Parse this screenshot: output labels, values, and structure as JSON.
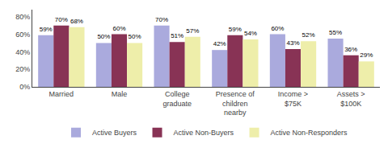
{
  "chart_data": {
    "type": "bar",
    "categories": [
      "Married",
      "Male",
      "College\ngraduate",
      "Presence of\nchildren\nnearby",
      "Income >\n$75K",
      "Assets >\n$100K"
    ],
    "series": [
      {
        "name": "Active Buyers",
        "color": "#aaaadd",
        "values": [
          59,
          50,
          70,
          42,
          60,
          55
        ],
        "value_labels": [
          "59%",
          "50%",
          "70%",
          "42%",
          "60%",
          "55%"
        ]
      },
      {
        "name": "Active Non-Buyers",
        "color": "#883355",
        "values": [
          70,
          60,
          51,
          59,
          43,
          36
        ],
        "value_labels": [
          "70%",
          "60%",
          "51%",
          "59%",
          "43%",
          "36%"
        ]
      },
      {
        "name": "Active Non-Responders",
        "color": "#eeeeaa",
        "values": [
          68,
          50,
          57,
          54,
          52,
          29
        ],
        "value_labels": [
          "68%",
          "50%",
          "57%",
          "54%",
          "52%",
          "29%"
        ]
      }
    ],
    "ylim": [
      0,
      88
    ],
    "yticks": [
      {
        "value": 0,
        "label": "0%"
      },
      {
        "value": 20,
        "label": "20%"
      },
      {
        "value": 40,
        "label": "40%"
      },
      {
        "value": 60,
        "label": "60%"
      },
      {
        "value": 80,
        "label": "80%"
      }
    ],
    "grid": false,
    "legend": "bottom",
    "data_labels": true
  }
}
